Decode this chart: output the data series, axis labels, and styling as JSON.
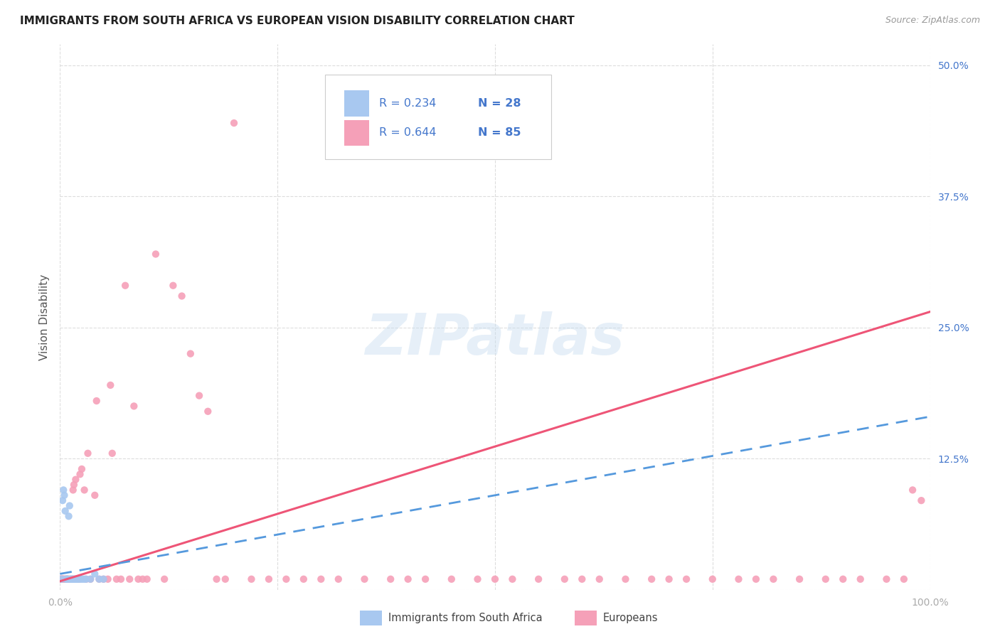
{
  "title": "IMMIGRANTS FROM SOUTH AFRICA VS EUROPEAN VISION DISABILITY CORRELATION CHART",
  "source": "Source: ZipAtlas.com",
  "ylabel": "Vision Disability",
  "color_blue": "#a8c8f0",
  "color_pink": "#f5a0b8",
  "color_blue_line": "#5599dd",
  "color_pink_line": "#ee5577",
  "color_text_blue": "#4477cc",
  "color_tick": "#aaaaaa",
  "watermark": "ZIPatlas",
  "legend_1_r": "R = 0.234",
  "legend_1_n": "N = 28",
  "legend_2_r": "R = 0.644",
  "legend_2_n": "N = 85",
  "sa_x": [
    0.2,
    0.3,
    0.4,
    0.5,
    0.6,
    0.7,
    0.8,
    0.9,
    1.0,
    1.1,
    1.2,
    1.3,
    1.4,
    1.5,
    1.6,
    1.7,
    1.8,
    1.9,
    2.0,
    2.2,
    2.4,
    2.6,
    2.8,
    3.0,
    3.5,
    4.0,
    4.5,
    5.0
  ],
  "sa_y": [
    1.0,
    8.5,
    9.5,
    9.0,
    7.5,
    1.0,
    1.0,
    1.0,
    7.0,
    8.0,
    1.0,
    1.0,
    1.0,
    1.0,
    1.0,
    1.0,
    1.0,
    1.0,
    1.0,
    1.0,
    1.0,
    1.0,
    1.0,
    1.0,
    1.0,
    1.5,
    1.0,
    1.0
  ],
  "eu_x": [
    0.1,
    0.2,
    0.3,
    0.4,
    0.5,
    0.6,
    0.7,
    0.8,
    0.9,
    1.0,
    1.2,
    1.4,
    1.6,
    1.8,
    2.0,
    2.2,
    2.5,
    2.8,
    3.0,
    3.5,
    4.0,
    4.5,
    5.0,
    5.5,
    6.0,
    6.5,
    7.0,
    7.5,
    8.0,
    8.5,
    9.0,
    9.5,
    10.0,
    11.0,
    12.0,
    13.0,
    14.0,
    15.0,
    16.0,
    17.0,
    18.0,
    19.0,
    20.0,
    22.0,
    24.0,
    26.0,
    28.0,
    30.0,
    32.0,
    35.0,
    38.0,
    40.0,
    42.0,
    45.0,
    48.0,
    50.0,
    52.0,
    55.0,
    58.0,
    60.0,
    62.0,
    65.0,
    68.0,
    70.0,
    72.0,
    75.0,
    78.0,
    80.0,
    82.0,
    85.0,
    88.0,
    90.0,
    92.0,
    95.0,
    97.0,
    98.0,
    99.0,
    0.15,
    0.25,
    0.35,
    1.5,
    2.3,
    3.2,
    4.2,
    5.8
  ],
  "eu_y": [
    1.0,
    1.0,
    1.0,
    1.0,
    1.0,
    1.0,
    1.0,
    1.0,
    1.0,
    1.0,
    1.0,
    1.0,
    10.0,
    10.5,
    1.0,
    1.0,
    11.5,
    9.5,
    1.0,
    1.0,
    9.0,
    1.0,
    1.0,
    1.0,
    13.0,
    1.0,
    1.0,
    29.0,
    1.0,
    17.5,
    1.0,
    1.0,
    1.0,
    32.0,
    1.0,
    29.0,
    28.0,
    22.5,
    18.5,
    17.0,
    1.0,
    1.0,
    44.5,
    1.0,
    1.0,
    1.0,
    1.0,
    1.0,
    1.0,
    1.0,
    1.0,
    1.0,
    1.0,
    1.0,
    1.0,
    1.0,
    1.0,
    1.0,
    1.0,
    1.0,
    1.0,
    1.0,
    1.0,
    1.0,
    1.0,
    1.0,
    1.0,
    1.0,
    1.0,
    1.0,
    1.0,
    1.0,
    1.0,
    1.0,
    1.0,
    9.5,
    8.5,
    1.0,
    1.0,
    1.0,
    9.5,
    11.0,
    13.0,
    18.0,
    19.5
  ],
  "eu_trend_x0": 0.0,
  "eu_trend_x1": 100.0,
  "eu_trend_y0": 0.8,
  "eu_trend_y1": 26.5,
  "sa_trend_x0": 0.0,
  "sa_trend_x1": 100.0,
  "sa_trend_y0": 1.5,
  "sa_trend_y1": 16.5,
  "xlim": [
    0,
    100
  ],
  "ylim": [
    0,
    52
  ],
  "yticks": [
    0,
    12.5,
    25.0,
    37.5,
    50.0
  ],
  "ytick_labels": [
    "",
    "12.5%",
    "25.0%",
    "37.5%",
    "50.0%"
  ]
}
